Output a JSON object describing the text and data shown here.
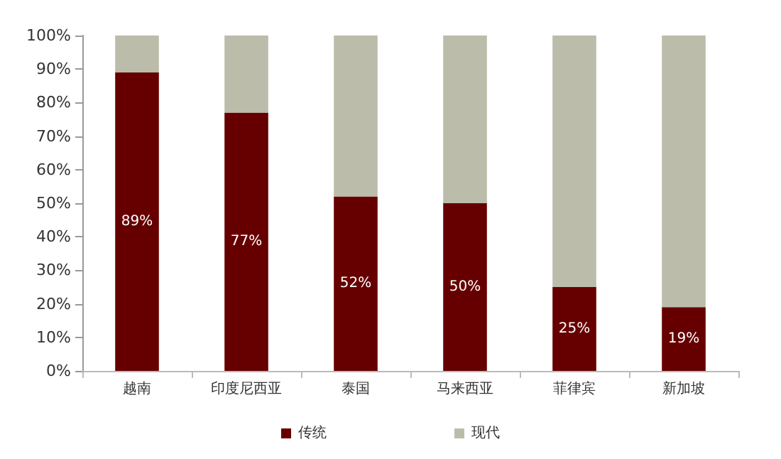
{
  "chart_data": {
    "type": "bar",
    "stacked": true,
    "categories": [
      "越南",
      "印度尼西亚",
      "泰国",
      "马来西亚",
      "菲律宾",
      "新加坡"
    ],
    "series": [
      {
        "name": "传统",
        "color": "#660000",
        "values": [
          89,
          77,
          52,
          50,
          25,
          19
        ],
        "value_labels": [
          "89%",
          "77%",
          "52%",
          "50%",
          "25%",
          "19%"
        ]
      },
      {
        "name": "现代",
        "color": "#bcbcaa",
        "values": [
          11,
          23,
          48,
          50,
          75,
          81
        ]
      }
    ],
    "ylim": [
      0,
      100
    ],
    "yticks": [
      {
        "value": 0,
        "label": "0%"
      },
      {
        "value": 10,
        "label": "10%"
      },
      {
        "value": 20,
        "label": "20%"
      },
      {
        "value": 30,
        "label": "30%"
      },
      {
        "value": 40,
        "label": "40%"
      },
      {
        "value": 50,
        "label": "50%"
      },
      {
        "value": 60,
        "label": "60%"
      },
      {
        "value": 70,
        "label": "70%"
      },
      {
        "value": 80,
        "label": "80%"
      },
      {
        "value": 90,
        "label": "90%"
      },
      {
        "value": 100,
        "label": "100%"
      }
    ],
    "grid": false,
    "legend": "bottom"
  }
}
